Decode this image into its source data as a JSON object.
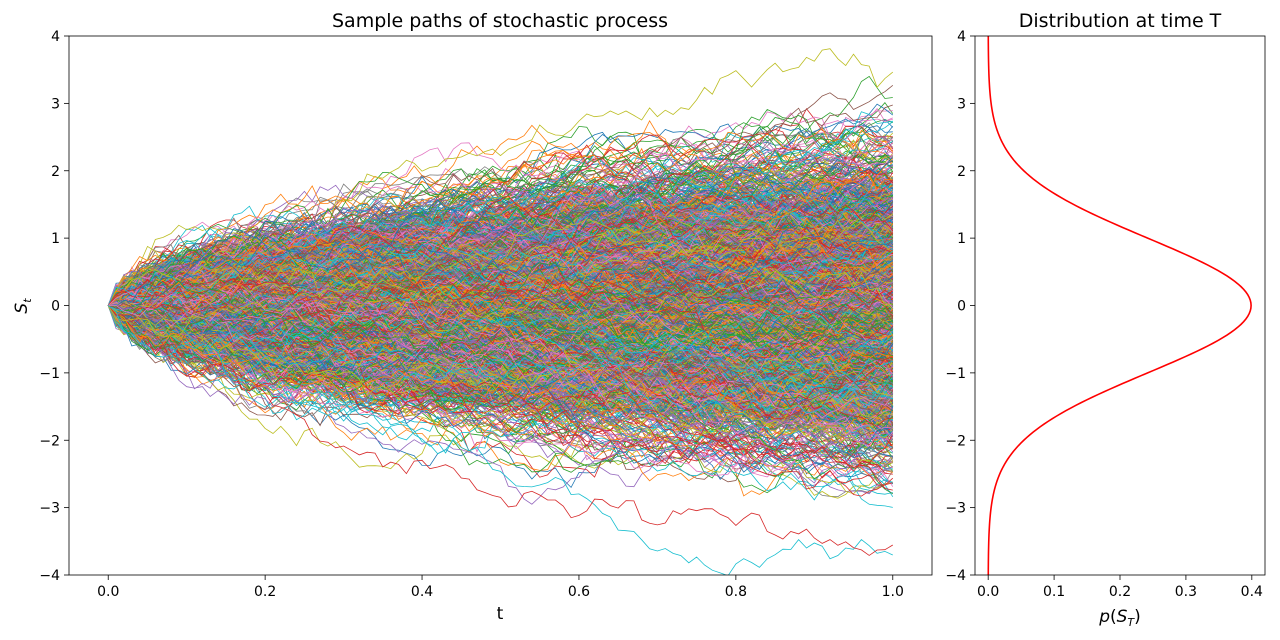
{
  "chart_data": [
    {
      "type": "line",
      "title": "Sample paths of stochastic process",
      "xlabel": "t",
      "ylabel": "S_t",
      "xlim": [
        -0.05,
        1.05
      ],
      "ylim": [
        -4,
        4
      ],
      "xticks": [
        "0.0",
        "0.2",
        "0.4",
        "0.6",
        "0.8",
        "1.0"
      ],
      "yticks": [
        "−4",
        "−3",
        "−2",
        "−1",
        "0",
        "1",
        "2",
        "3",
        "4"
      ],
      "x_range": [
        0.0,
        1.0
      ],
      "start_value": 0,
      "path_count_estimate": 3000,
      "path_std_at_T": 1.0,
      "grid": false
    },
    {
      "type": "line",
      "title": "Distribution at time T",
      "xlabel": "p(S_T)",
      "ylim": [
        -4,
        4
      ],
      "xlim": [
        -0.02,
        0.42
      ],
      "xticks": [
        "0.0",
        "0.1",
        "0.2",
        "0.3",
        "0.4"
      ],
      "yticks": [
        "−4",
        "−3",
        "−2",
        "−1",
        "0",
        "1",
        "2",
        "3",
        "4"
      ],
      "color": "#ff0000",
      "density_points": [
        {
          "s": -4.0,
          "p": 0.0001
        },
        {
          "s": -3.5,
          "p": 0.0009
        },
        {
          "s": -3.0,
          "p": 0.0044
        },
        {
          "s": -2.5,
          "p": 0.0175
        },
        {
          "s": -2.0,
          "p": 0.054
        },
        {
          "s": -1.5,
          "p": 0.1295
        },
        {
          "s": -1.0,
          "p": 0.242
        },
        {
          "s": -0.5,
          "p": 0.3521
        },
        {
          "s": 0.0,
          "p": 0.3989
        },
        {
          "s": 0.5,
          "p": 0.3521
        },
        {
          "s": 1.0,
          "p": 0.242
        },
        {
          "s": 1.5,
          "p": 0.1295
        },
        {
          "s": 2.0,
          "p": 0.054
        },
        {
          "s": 2.5,
          "p": 0.0175
        },
        {
          "s": 3.0,
          "p": 0.0044
        },
        {
          "s": 3.5,
          "p": 0.0009
        },
        {
          "s": 4.0,
          "p": 0.0001
        }
      ],
      "grid": false
    }
  ],
  "palette": [
    "#1f77b4",
    "#ff7f0e",
    "#2ca02c",
    "#d62728",
    "#9467bd",
    "#8c564b",
    "#e377c2",
    "#7f7f7f",
    "#bcbd22",
    "#17becf"
  ]
}
